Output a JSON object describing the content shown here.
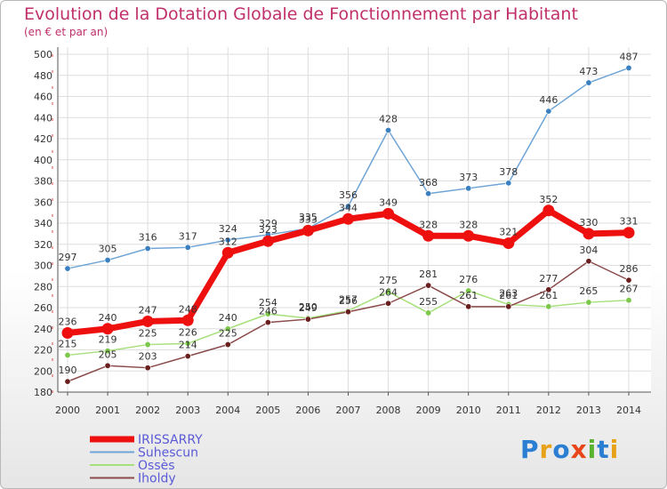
{
  "chart_data": {
    "type": "line",
    "title": "Evolution de la Dotation Globale de Fonctionnement par Habitant",
    "subtitle": "(en € et par an)",
    "x": [
      2000,
      2001,
      2002,
      2003,
      2004,
      2005,
      2006,
      2007,
      2008,
      2009,
      2010,
      2011,
      2012,
      2013,
      2014
    ],
    "ylim": [
      180,
      500
    ],
    "yticks": [
      180,
      200,
      220,
      240,
      260,
      280,
      300,
      320,
      340,
      360,
      380,
      400,
      420,
      440,
      460,
      480,
      500
    ],
    "grid": true,
    "series": [
      {
        "name": "Suhescun",
        "color": "#6ea4d6",
        "marker": "#3a7fc0",
        "values": [
          297,
          305,
          316,
          317,
          324,
          329,
          335,
          356,
          428,
          368,
          373,
          378,
          446,
          473,
          487
        ]
      },
      {
        "name": "Ossès",
        "color": "#a6e07a",
        "marker": "#7cc84a",
        "values": [
          215,
          219,
          225,
          226,
          240,
          254,
          250,
          257,
          275,
          255,
          276,
          263,
          261,
          265,
          267
        ]
      },
      {
        "name": "Iholdy",
        "color": "#8b4a4a",
        "marker": "#6a1f1f",
        "values": [
          190,
          205,
          203,
          214,
          225,
          246,
          249,
          256,
          264,
          281,
          261,
          261,
          277,
          304,
          286
        ]
      },
      {
        "name": "IRISSARRY",
        "color": "#ee0f0f",
        "marker": "#ee0f0f",
        "values": [
          236,
          240,
          247,
          248,
          312,
          323,
          333,
          344,
          349,
          328,
          328,
          321,
          352,
          330,
          331
        ]
      }
    ],
    "legend": {
      "position": "bottom-left",
      "items": [
        {
          "name": "IRISSARRY",
          "color": "#ee0f0f"
        },
        {
          "name": "Suhescun",
          "color": "#6ea4d6"
        },
        {
          "name": "Ossès",
          "color": "#a6e07a"
        },
        {
          "name": "Iholdy",
          "color": "#8b4a4a"
        }
      ]
    }
  },
  "logo_text": "Proxiti"
}
